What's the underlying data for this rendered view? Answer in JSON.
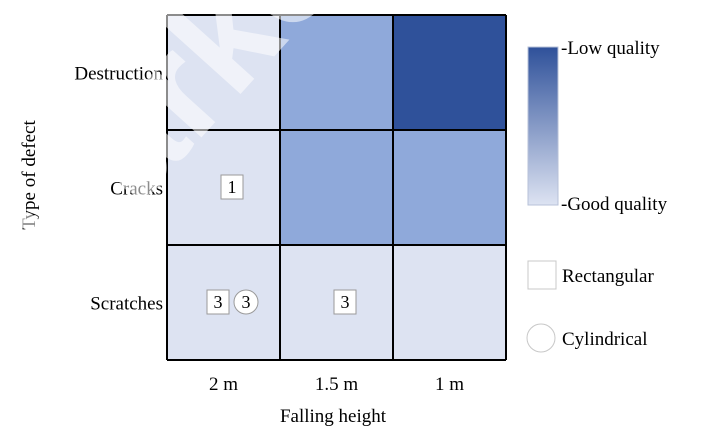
{
  "chart_data": {
    "type": "heatmap",
    "xlabel": "Falling height",
    "ylabel": "Type of defect",
    "x_categories": [
      "2 m",
      "1.5 m",
      "1 m"
    ],
    "y_categories": [
      "Destruction",
      "Cracks",
      "Scratches"
    ],
    "cell_colors": [
      [
        "#dde3f2",
        "#8fa9da",
        "#2f519a"
      ],
      [
        "#dde3f2",
        "#8fa9da",
        "#8fa9da"
      ],
      [
        "#dde3f2",
        "#dde3f2",
        "#dde3f2"
      ]
    ],
    "markers": [
      {
        "row": "Cracks",
        "col": "2 m",
        "shape": "Rectangular",
        "label": "1"
      },
      {
        "row": "Scratches",
        "col": "2 m",
        "shape": "Rectangular",
        "label": "3"
      },
      {
        "row": "Scratches",
        "col": "2 m",
        "shape": "Cylindrical",
        "label": "3"
      },
      {
        "row": "Scratches",
        "col": "1.5 m",
        "shape": "Rectangular",
        "label": "3"
      }
    ],
    "colorbar": {
      "high_label": "-Low quality",
      "low_label": "-Good quality",
      "high_color": "#2f519a",
      "low_color": "#dde3f2"
    },
    "legend": [
      {
        "shape": "rect",
        "label": "Rectangular"
      },
      {
        "shape": "circle",
        "label": "Cylindrical"
      }
    ],
    "watermark": "Marketo",
    "grid": true
  }
}
